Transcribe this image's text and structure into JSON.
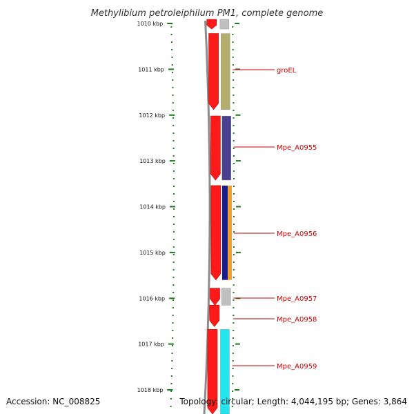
{
  "title": "Methylibium petroleiphilum PM1, complete genome",
  "footer": {
    "accession": "Accession: NC_008825",
    "summary": "Topology: circular; Length: 4,044,195 bp; Genes: 3,864"
  },
  "scale": {
    "start_kbp": 1010,
    "end_kbp": 1018,
    "tick_labels": [
      "1010 kbp",
      "1011 kbp",
      "1012 kbp",
      "1013 kbp",
      "1014 kbp",
      "1015 kbp",
      "1016 kbp",
      "1017 kbp",
      "1018 kbp"
    ]
  },
  "genes": [
    {
      "label": "",
      "start_kbp": 1009.9,
      "end_kbp": 1010.12,
      "color": "#c0c0c0"
    },
    {
      "label": "groEL",
      "start_kbp": 1010.22,
      "end_kbp": 1011.88,
      "color": "#b5ad6e"
    },
    {
      "label": "Mpe_A0955",
      "start_kbp": 1012.02,
      "end_kbp": 1013.42,
      "color": "#4b3f8f"
    },
    {
      "label": "Mpe_A0956",
      "start_kbp": 1013.54,
      "end_kbp": 1015.6,
      "color": "#1a1a8c",
      "accent": "#f0a030"
    },
    {
      "label": "Mpe_A0957",
      "start_kbp": 1015.78,
      "end_kbp": 1016.15,
      "color": "#c0c0c0"
    },
    {
      "label": "Mpe_A0958",
      "start_kbp": 1016.15,
      "end_kbp": 1016.62,
      "color": "#ffffff"
    },
    {
      "label": "Mpe_A0959",
      "start_kbp": 1016.68,
      "end_kbp": 1018.6,
      "color": "#22e5f0"
    }
  ],
  "colors": {
    "cds": "#ff1a1a",
    "backbone": "#8c8c8c",
    "tick": "#1a7a1a",
    "label": "#cc0000"
  }
}
